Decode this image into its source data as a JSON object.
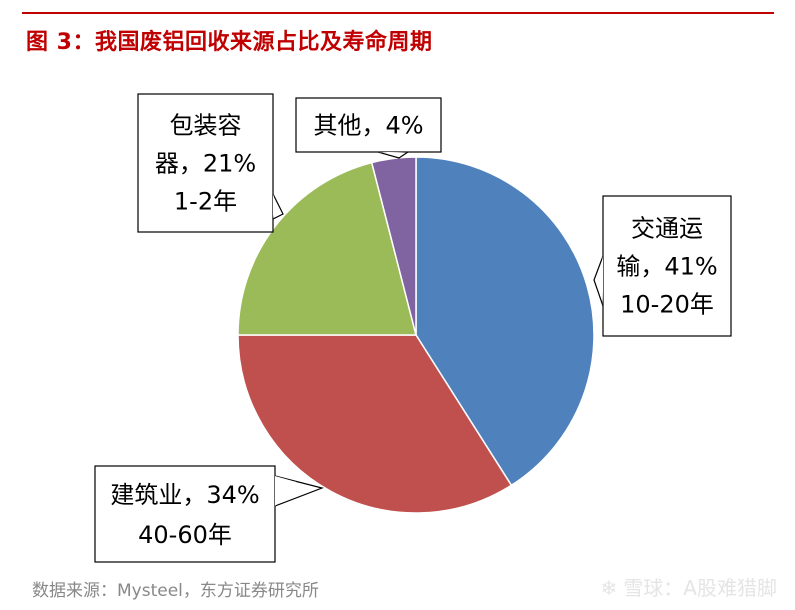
{
  "title": "图 3：我国废铝回收来源占比及寿命周期",
  "source": "数据来源：Mysteel，东方证券研究所",
  "watermark": "雪球：A股难猎脚",
  "colors": {
    "title": "#c00000",
    "rule": "#c00000"
  },
  "chart_data": {
    "type": "pie",
    "slices": [
      {
        "name": "交通运输",
        "value": 41,
        "color": "#4f81bd",
        "label_lines": [
          "交通运",
          "输，41%",
          "10-20年"
        ]
      },
      {
        "name": "建筑业",
        "value": 34,
        "color": "#c0504d",
        "label_lines": [
          "建筑业，34%",
          "40-60年"
        ]
      },
      {
        "name": "包装容器",
        "value": 21,
        "color": "#9bbb59",
        "label_lines": [
          "包装容",
          "器，21%",
          "1-2年"
        ]
      },
      {
        "name": "其他",
        "value": 4,
        "color": "#8064a2",
        "label_lines": [
          "其他，4%"
        ]
      }
    ]
  }
}
